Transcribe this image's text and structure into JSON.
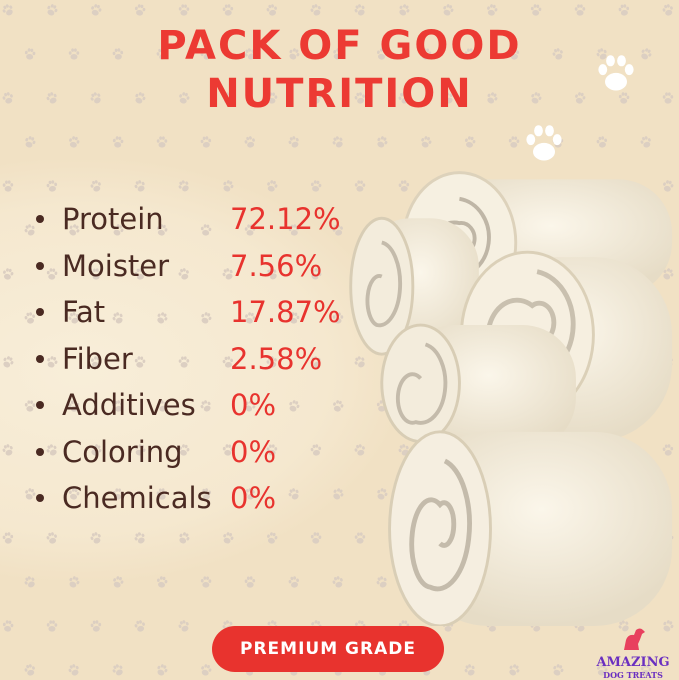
{
  "title": {
    "line1": "PACK OF GOOD",
    "line2": "NUTRITION"
  },
  "nutrition": [
    {
      "label": "Protein",
      "value": "72.12%"
    },
    {
      "label": "Moister",
      "value": "7.56%"
    },
    {
      "label": "Fat",
      "value": "17.87%"
    },
    {
      "label": "Fiber",
      "value": "2.58%"
    },
    {
      "label": "Additives",
      "value": "0%"
    },
    {
      "label": "Coloring",
      "value": "0%"
    },
    {
      "label": "Chemicals",
      "value": "0%"
    }
  ],
  "badge": "PREMIUM GRADE",
  "logo": {
    "line1": "AMAZING",
    "line2": "DOG TREATS"
  },
  "colors": {
    "accent": "#e8332e",
    "text": "#4a2a22",
    "background": "#f1e1c4",
    "logo": "#6a2fc0"
  }
}
